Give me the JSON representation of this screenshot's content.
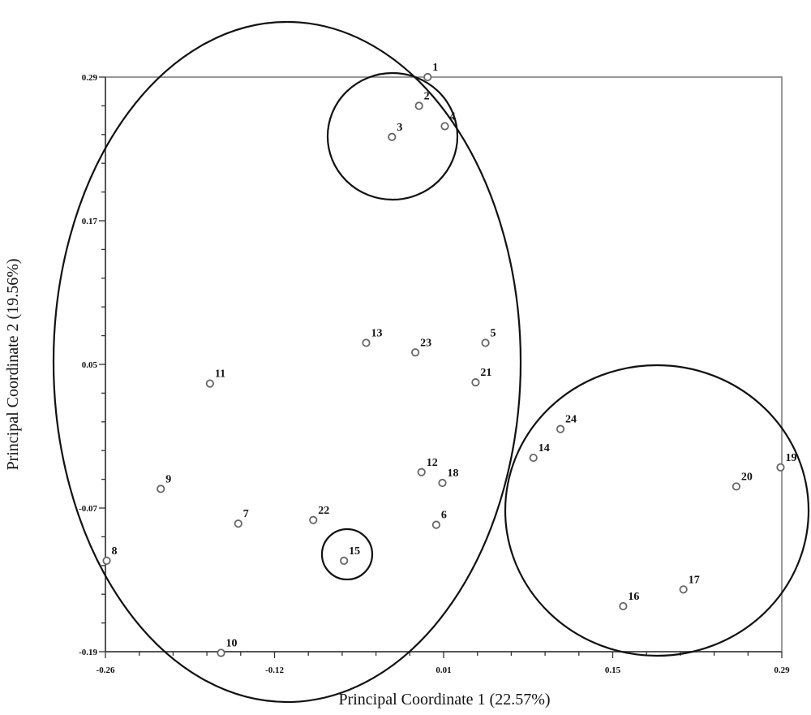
{
  "chart_data": {
    "type": "scatter",
    "title": "",
    "xlabel": "Principal Coordinate 1 (22.57%)",
    "ylabel": "Principal Coordinate 2 (19.56%)",
    "xlim": [
      -0.26,
      0.29
    ],
    "ylim": [
      -0.19,
      0.29
    ],
    "x_ticks": [
      "-0.26",
      "-0.12",
      "0.01",
      "0.15",
      "0.29"
    ],
    "y_ticks": [
      "0.29",
      "0.17",
      "0.05",
      "-0.07",
      "-0.19"
    ],
    "grid": false,
    "marker": "open-circle",
    "points": [
      {
        "label": "1",
        "x": 0.002,
        "y": 0.29
      },
      {
        "label": "2",
        "x": -0.005,
        "y": 0.266
      },
      {
        "label": "3",
        "x": -0.027,
        "y": 0.24
      },
      {
        "label": "4",
        "x": 0.016,
        "y": 0.249
      },
      {
        "label": "5",
        "x": 0.049,
        "y": 0.068
      },
      {
        "label": "6",
        "x": 0.009,
        "y": -0.084
      },
      {
        "label": "7",
        "x": -0.152,
        "y": -0.083
      },
      {
        "label": "8",
        "x": -0.259,
        "y": -0.114
      },
      {
        "label": "9",
        "x": -0.215,
        "y": -0.054
      },
      {
        "label": "10",
        "x": -0.166,
        "y": -0.191
      },
      {
        "label": "11",
        "x": -0.175,
        "y": 0.034
      },
      {
        "label": "12",
        "x": -0.003,
        "y": -0.04
      },
      {
        "label": "13",
        "x": -0.048,
        "y": 0.068
      },
      {
        "label": "14",
        "x": 0.088,
        "y": -0.028
      },
      {
        "label": "15",
        "x": -0.066,
        "y": -0.114
      },
      {
        "label": "16",
        "x": 0.161,
        "y": -0.152
      },
      {
        "label": "17",
        "x": 0.21,
        "y": -0.138
      },
      {
        "label": "18",
        "x": 0.014,
        "y": -0.049
      },
      {
        "label": "19",
        "x": 0.289,
        "y": -0.036
      },
      {
        "label": "20",
        "x": 0.253,
        "y": -0.052
      },
      {
        "label": "21",
        "x": 0.041,
        "y": 0.035
      },
      {
        "label": "22",
        "x": -0.091,
        "y": -0.08
      },
      {
        "label": "23",
        "x": -0.008,
        "y": 0.06
      },
      {
        "label": "24",
        "x": 0.11,
        "y": -0.004
      }
    ],
    "clusters": [
      {
        "members": [
          "1",
          "2",
          "3",
          "4",
          "5",
          "6",
          "7",
          "8",
          "9",
          "10",
          "11",
          "12",
          "13",
          "15",
          "18",
          "21",
          "22",
          "23"
        ]
      },
      {
        "members": [
          "1",
          "2",
          "3",
          "4"
        ]
      },
      {
        "members": [
          "15"
        ]
      },
      {
        "members": [
          "14",
          "16",
          "17",
          "19",
          "20",
          "24"
        ]
      }
    ]
  }
}
